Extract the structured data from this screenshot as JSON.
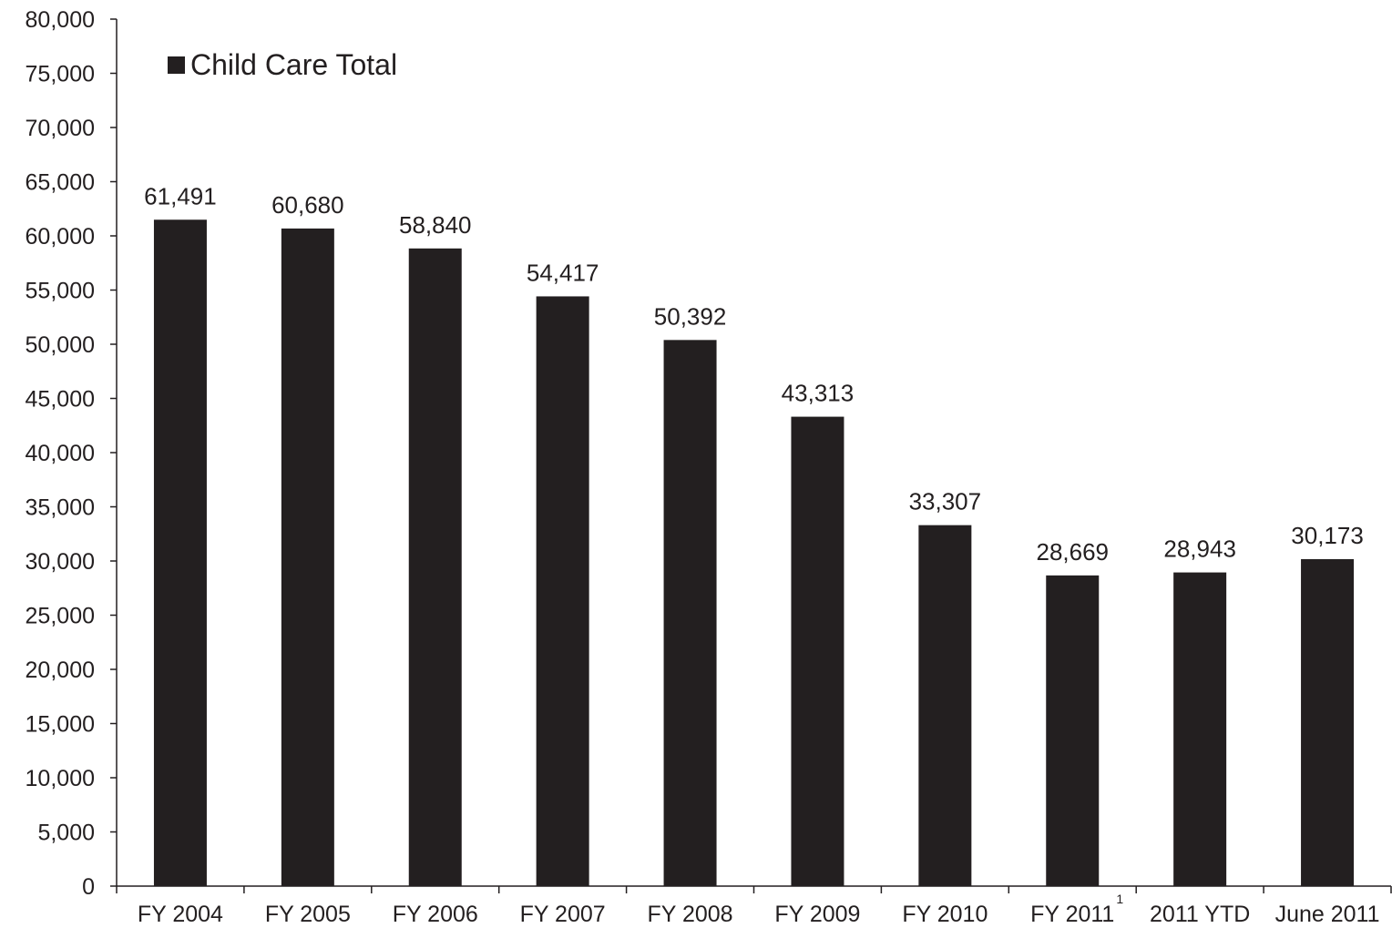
{
  "chart_data": {
    "type": "bar",
    "categories": [
      "FY 2004",
      "FY 2005",
      "FY 2006",
      "FY 2007",
      "FY 2008",
      "FY 2009",
      "FY 2010",
      "FY 2011",
      "2011 YTD",
      "June 2011"
    ],
    "category_superscripts": [
      "",
      "",
      "",
      "",
      "",
      "",
      "",
      "1",
      "",
      ""
    ],
    "series": [
      {
        "name": "Child Care Total",
        "values": [
          61491,
          60680,
          58840,
          54417,
          50392,
          43313,
          33307,
          28669,
          28943,
          30173
        ],
        "data_labels": [
          "61,491",
          "60,680",
          "58,840",
          "54,417",
          "50,392",
          "43,313",
          "33,307",
          "28,669",
          "28,943",
          "30,173"
        ]
      }
    ],
    "title": "",
    "xlabel": "",
    "ylabel": "",
    "ylim": [
      0,
      80000
    ],
    "yticks": [
      0,
      5000,
      10000,
      15000,
      20000,
      25000,
      30000,
      35000,
      40000,
      45000,
      50000,
      55000,
      60000,
      65000,
      70000,
      75000,
      80000
    ],
    "ytick_labels": [
      "0",
      "5,000",
      "10,000",
      "15,000",
      "20,000",
      "25,000",
      "30,000",
      "35,000",
      "40,000",
      "45,000",
      "50,000",
      "55,000",
      "60,000",
      "65,000",
      "70,000",
      "75,000",
      "80,000"
    ],
    "grid": false,
    "legend_position": "top-left",
    "colors": {
      "bar": "#231f20",
      "axis": "#231f20",
      "text": "#231f20"
    }
  }
}
